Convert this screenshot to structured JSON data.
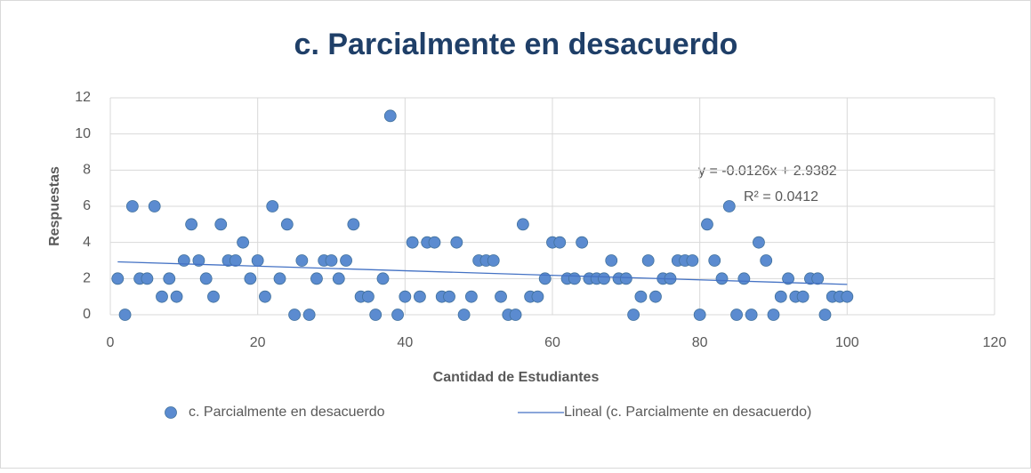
{
  "chart_data": {
    "type": "scatter",
    "title": "c. Parcialmente en desacuerdo",
    "xlabel": "Cantidad de Estudiantes",
    "ylabel": "Respuestas",
    "xlim": [
      0,
      120
    ],
    "xticks": [
      0,
      20,
      40,
      60,
      80,
      100,
      120
    ],
    "ylim": [
      0,
      12
    ],
    "yticks": [
      0,
      2,
      4,
      6,
      8,
      10,
      12
    ],
    "grid": true,
    "legend": "bottom",
    "series": [
      {
        "name": "c. Parcialmente en desacuerdo",
        "color": "#5b8bd0",
        "x": [
          1,
          2,
          3,
          4,
          5,
          6,
          7,
          8,
          9,
          10,
          11,
          12,
          13,
          14,
          15,
          16,
          17,
          18,
          19,
          20,
          21,
          22,
          23,
          24,
          25,
          26,
          27,
          28,
          29,
          30,
          31,
          32,
          33,
          34,
          35,
          36,
          37,
          38,
          39,
          40,
          41,
          42,
          43,
          44,
          45,
          46,
          47,
          48,
          49,
          50,
          51,
          52,
          53,
          54,
          55,
          56,
          57,
          58,
          59,
          60,
          61,
          62,
          63,
          64,
          65,
          66,
          67,
          68,
          69,
          70,
          71,
          72,
          73,
          74,
          75,
          76,
          77,
          78,
          79,
          80,
          81,
          82,
          83,
          84,
          85,
          86,
          87,
          88,
          89,
          90,
          91,
          92,
          93,
          94,
          95,
          96,
          97,
          98,
          99,
          100
        ],
        "values": [
          2,
          0,
          6,
          2,
          2,
          6,
          1,
          2,
          1,
          3,
          5,
          3,
          2,
          1,
          5,
          3,
          3,
          4,
          2,
          3,
          1,
          6,
          2,
          5,
          0,
          3,
          0,
          2,
          3,
          3,
          2,
          3,
          5,
          1,
          1,
          0,
          2,
          11,
          0,
          1,
          4,
          1,
          4,
          4,
          1,
          1,
          4,
          0,
          1,
          3,
          3,
          3,
          1,
          0,
          0,
          5,
          1,
          1,
          2,
          4,
          4,
          2,
          2,
          4,
          2,
          2,
          2,
          3,
          2,
          2,
          0,
          1,
          3,
          1,
          2,
          2,
          3,
          3,
          3,
          0,
          5,
          3,
          2,
          6,
          0,
          2,
          0,
          4,
          3,
          0,
          1,
          2,
          1,
          1,
          2,
          2,
          0,
          1,
          1,
          1
        ]
      }
    ],
    "trendline": {
      "name": "Lineal (c. Parcialmente en desacuerdo)",
      "color": "#4472c4",
      "equation": "y = -0.0126x + 2.9382",
      "r_squared": "R² = 0.0412",
      "slope": -0.0126,
      "intercept": 2.9382
    }
  }
}
